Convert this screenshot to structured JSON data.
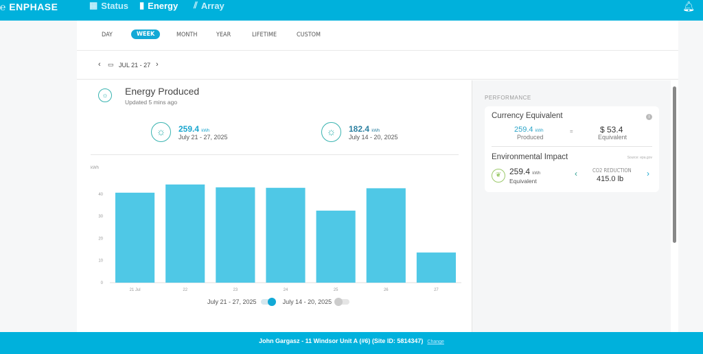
{
  "header": {
    "logo": "ENPHASE",
    "nav": [
      {
        "label": "Status",
        "icon": "grid-icon"
      },
      {
        "label": "Energy",
        "icon": "bar-chart-icon"
      },
      {
        "label": "Array",
        "icon": "panels-icon"
      }
    ],
    "active": "Energy"
  },
  "tabs": [
    "DAY",
    "WEEK",
    "MONTH",
    "YEAR",
    "LIFETIME",
    "CUSTOM"
  ],
  "selected_tab": "WEEK",
  "date_range": "JUL 21 - 27",
  "energy": {
    "title": "Energy Produced",
    "updated": "Updated 5 mins ago",
    "current": {
      "value": "259.4",
      "unit": "kWh",
      "range": "July 21 - 27, 2025"
    },
    "previous": {
      "value": "182.4",
      "unit": "kWh",
      "range": "July 14 - 20, 2025"
    }
  },
  "chart_data": {
    "type": "bar",
    "ylabel": "kWh",
    "categories": [
      "21 Jul",
      "22",
      "23",
      "24",
      "25",
      "26",
      "27"
    ],
    "values": [
      40.6,
      44.3,
      43.0,
      42.8,
      32.5,
      42.6,
      13.6
    ],
    "yticks": [
      "0",
      "10",
      "20",
      "30",
      "40"
    ],
    "ylim": [
      0,
      48
    ],
    "color": "#4fc8e6",
    "legend": [
      {
        "name": "July 21 - 27, 2025",
        "on": true
      },
      {
        "name": "July 14 - 20, 2025",
        "on": false
      }
    ]
  },
  "performance": {
    "heading": "PERFORMANCE",
    "currency": {
      "title": "Currency Equivalent",
      "kwh": "259.4",
      "unit": "kWh",
      "produced": "Produced",
      "eq": "=",
      "money": "$ 53.4",
      "money_label": "Equivalent"
    },
    "env": {
      "title": "Environmental Impact",
      "source": "Source: epa.gov",
      "kwh": "259.4",
      "unit": "kWh",
      "label": "Equivalent",
      "metric": "CO2 REDUCTION",
      "metric_value": "415.0 lb"
    }
  },
  "footer": {
    "site": "John Gargasz - 11 Windsor Unit A (#6) (Site ID: 5814347)",
    "change": "Change"
  },
  "colors": {
    "brand": "#00b1dc",
    "accent": "#12a9d6"
  }
}
